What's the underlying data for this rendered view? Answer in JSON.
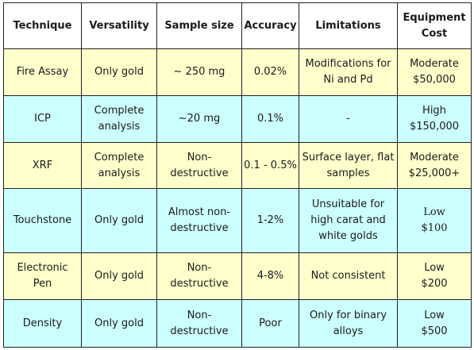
{
  "headers": [
    "Technique",
    "Versatility",
    "Sample size",
    "Accuracy",
    "Limitations",
    "Equipment\nCost"
  ],
  "rows": [
    {
      "technique": "Fire Assay",
      "versatility": "Only gold",
      "sample_size": "~ 250 mg",
      "accuracy": "0.02%",
      "limitations": "Modifications for\nNi and Pd",
      "cost": "Moderate\n$50,000",
      "color": "#ffffcc"
    },
    {
      "technique": "ICP",
      "versatility": "Complete\nanalysis",
      "sample_size": "~20 mg",
      "accuracy": "0.1%",
      "limitations": "-",
      "cost": "High\n$150,000",
      "color": "#ccffff"
    },
    {
      "technique": "XRF",
      "versatility": "Complete\nanalysis",
      "sample_size": "Non-\ndestructive",
      "accuracy": "0.1 - 0.5%",
      "limitations": "Surface layer, flat\nsamples",
      "cost": "Moderate\n$25,000+",
      "color": "#ffffcc"
    },
    {
      "technique": "Touchstone",
      "versatility": "Only gold",
      "sample_size": "Almost non-\ndestructive",
      "accuracy": "1-2%",
      "limitations": "Unsuitable for\nhigh carat and\nwhite golds",
      "cost": "Low\n$100",
      "color": "#ccffff"
    },
    {
      "technique": "Electronic\nPen",
      "versatility": "Only gold",
      "sample_size": "Non-\ndestructive",
      "accuracy": "4-8%",
      "limitations": "Not consistent",
      "cost": "Low\n$200",
      "color": "#ffffcc"
    },
    {
      "technique": "Density",
      "versatility": "Only gold",
      "sample_size": "Non-\ndestructive",
      "accuracy": "Poor",
      "limitations": "Only for binary\nalloys",
      "cost": "Low\n$500",
      "color": "#ccffff"
    }
  ]
}
